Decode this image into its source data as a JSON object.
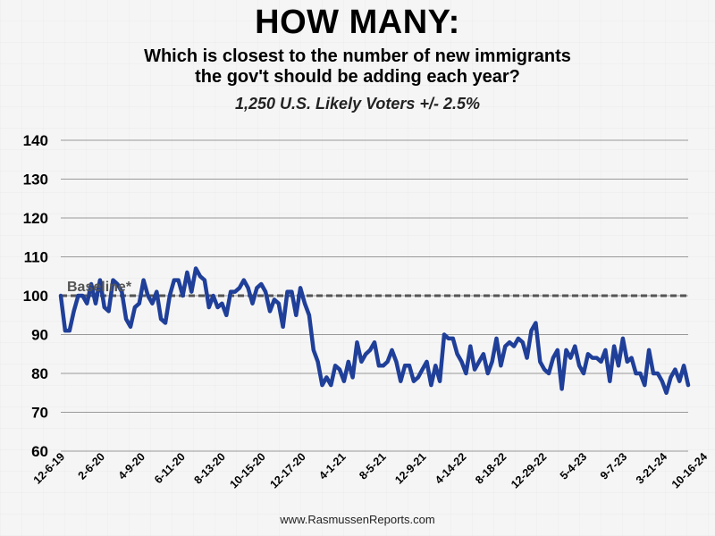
{
  "header": {
    "title": "HOW MANY:",
    "subtitle_line1": "Which is closest to the number of new immigrants",
    "subtitle_line2": "the gov't should be adding each year?",
    "note": "1,250 U.S. Likely Voters +/- 2.5%"
  },
  "footer": {
    "source": "www.RasmussenReports.com"
  },
  "colors": {
    "line": "#1f3f99",
    "baseline": "#555555",
    "grid": "#999999",
    "background": "#f5f5f5"
  },
  "chart_data": {
    "type": "line",
    "title": "HOW MANY:",
    "xlabel": "",
    "ylabel": "",
    "ylim": [
      60,
      140
    ],
    "yticks": [
      60,
      70,
      80,
      90,
      100,
      110,
      120,
      130,
      140
    ],
    "grid": true,
    "x_tick_labels": [
      "12-6-19",
      "2-6-20",
      "4-9-20",
      "6-11-20",
      "8-13-20",
      "10-15-20",
      "12-17-20",
      "4-1-21",
      "8-5-21",
      "12-9-21",
      "4-14-22",
      "8-18-22",
      "12-29-22",
      "5-4-23",
      "9-7-23",
      "3-21-24",
      "10-16-24"
    ],
    "baseline": {
      "label": "Baseline*",
      "value": 100
    },
    "series": [
      {
        "values": [
          100,
          91,
          91,
          96,
          100,
          100,
          98,
          103,
          98,
          104,
          97,
          96,
          104,
          103,
          101,
          94,
          92,
          97,
          98,
          104,
          100,
          98,
          101,
          94,
          93,
          100,
          104,
          104,
          100,
          106,
          101,
          107,
          105,
          104,
          97,
          100,
          97,
          98,
          95,
          101,
          101,
          102,
          104,
          102,
          98,
          102,
          103,
          101,
          96,
          99,
          98,
          92,
          101,
          101,
          95,
          102,
          98,
          95,
          86,
          83,
          77,
          79,
          77,
          82,
          81,
          78,
          83,
          79,
          88,
          83,
          85,
          86,
          88,
          82,
          82,
          83,
          86,
          83,
          78,
          82,
          82,
          78,
          79,
          81,
          83,
          77,
          82,
          78,
          90,
          89,
          89,
          85,
          83,
          80,
          87,
          81,
          83,
          85,
          80,
          83,
          89,
          82,
          87,
          88,
          87,
          89,
          88,
          84,
          91,
          93,
          83,
          81,
          80,
          84,
          86,
          76,
          86,
          84,
          87,
          82,
          80,
          85,
          84,
          84,
          83,
          86,
          78,
          87,
          82,
          89,
          83,
          84,
          80,
          80,
          77,
          86,
          80,
          80,
          78,
          75,
          79,
          81,
          78,
          82,
          77
        ]
      }
    ]
  }
}
